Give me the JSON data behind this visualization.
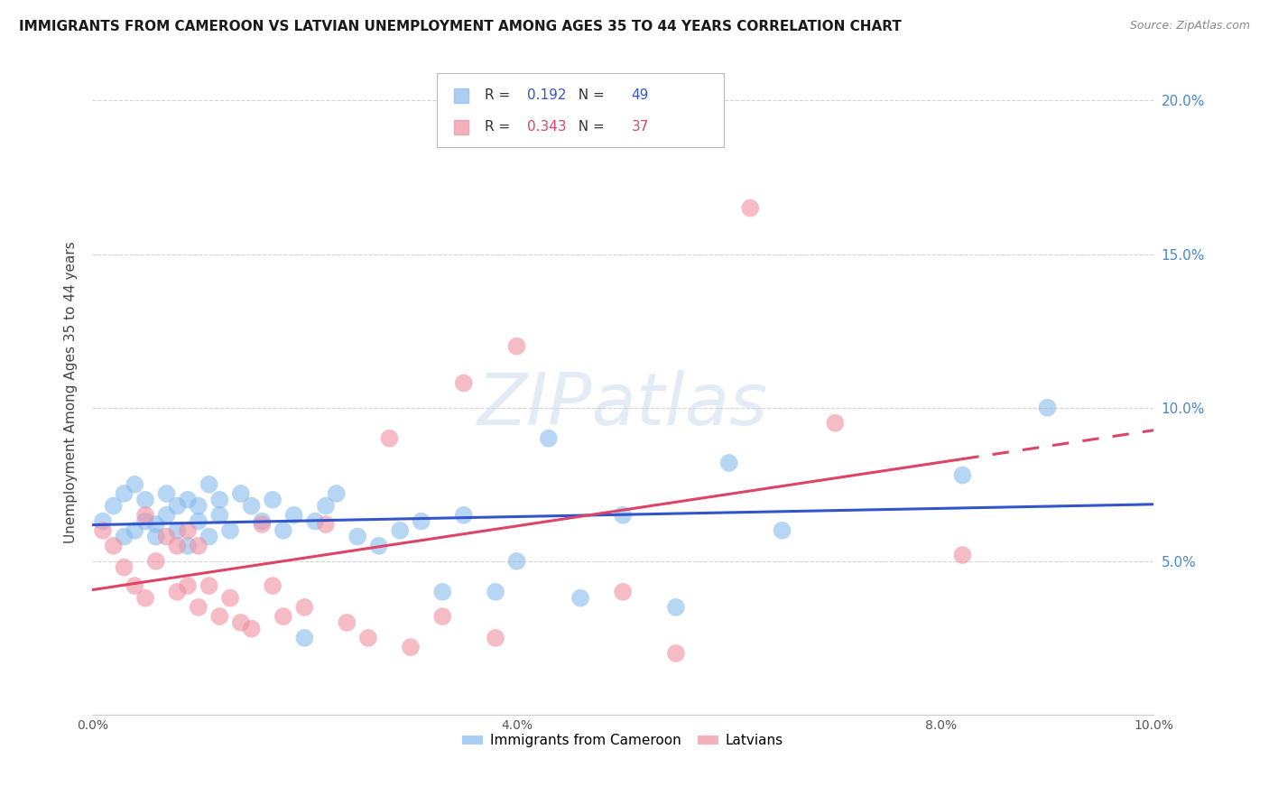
{
  "title": "IMMIGRANTS FROM CAMEROON VS LATVIAN UNEMPLOYMENT AMONG AGES 35 TO 44 YEARS CORRELATION CHART",
  "source": "Source: ZipAtlas.com",
  "ylabel": "Unemployment Among Ages 35 to 44 years",
  "xlim": [
    0.0,
    0.1
  ],
  "ylim": [
    0.0,
    0.21
  ],
  "xticks": [
    0.0,
    0.02,
    0.04,
    0.06,
    0.08,
    0.1
  ],
  "yticks": [
    0.0,
    0.05,
    0.1,
    0.15,
    0.2
  ],
  "xtick_labels": [
    "0.0%",
    "",
    "4.0%",
    "",
    "8.0%",
    "10.0%"
  ],
  "ytick_labels_right": [
    "",
    "5.0%",
    "10.0%",
    "15.0%",
    "20.0%"
  ],
  "background_color": "#ffffff",
  "grid_color": "#d0d0d0",
  "blue_color": "#88bbee",
  "pink_color": "#f090a0",
  "blue_line_color": "#3355cc",
  "pink_line_color": "#dd4466",
  "legend_r_blue": "0.192",
  "legend_n_blue": "49",
  "legend_r_pink": "0.343",
  "legend_n_pink": "37",
  "legend_label_blue": "Immigrants from Cameroon",
  "legend_label_pink": "Latvians",
  "blue_x": [
    0.001,
    0.002,
    0.003,
    0.003,
    0.004,
    0.004,
    0.005,
    0.005,
    0.006,
    0.006,
    0.007,
    0.007,
    0.008,
    0.008,
    0.009,
    0.009,
    0.01,
    0.01,
    0.011,
    0.011,
    0.012,
    0.012,
    0.013,
    0.014,
    0.015,
    0.016,
    0.017,
    0.018,
    0.019,
    0.02,
    0.021,
    0.022,
    0.023,
    0.025,
    0.027,
    0.029,
    0.031,
    0.033,
    0.035,
    0.038,
    0.04,
    0.043,
    0.046,
    0.05,
    0.055,
    0.06,
    0.065,
    0.082,
    0.09
  ],
  "blue_y": [
    0.063,
    0.068,
    0.058,
    0.072,
    0.06,
    0.075,
    0.063,
    0.07,
    0.062,
    0.058,
    0.072,
    0.065,
    0.068,
    0.06,
    0.055,
    0.07,
    0.063,
    0.068,
    0.075,
    0.058,
    0.07,
    0.065,
    0.06,
    0.072,
    0.068,
    0.063,
    0.07,
    0.06,
    0.065,
    0.025,
    0.063,
    0.068,
    0.072,
    0.058,
    0.055,
    0.06,
    0.063,
    0.04,
    0.065,
    0.04,
    0.05,
    0.09,
    0.038,
    0.065,
    0.035,
    0.082,
    0.06,
    0.078,
    0.1
  ],
  "pink_x": [
    0.001,
    0.002,
    0.003,
    0.004,
    0.005,
    0.005,
    0.006,
    0.007,
    0.008,
    0.008,
    0.009,
    0.009,
    0.01,
    0.01,
    0.011,
    0.012,
    0.013,
    0.014,
    0.015,
    0.016,
    0.017,
    0.018,
    0.02,
    0.022,
    0.024,
    0.026,
    0.028,
    0.03,
    0.033,
    0.035,
    0.038,
    0.04,
    0.05,
    0.055,
    0.062,
    0.07,
    0.082
  ],
  "pink_y": [
    0.06,
    0.055,
    0.048,
    0.042,
    0.038,
    0.065,
    0.05,
    0.058,
    0.04,
    0.055,
    0.042,
    0.06,
    0.055,
    0.035,
    0.042,
    0.032,
    0.038,
    0.03,
    0.028,
    0.062,
    0.042,
    0.032,
    0.035,
    0.062,
    0.03,
    0.025,
    0.09,
    0.022,
    0.032,
    0.108,
    0.025,
    0.12,
    0.04,
    0.02,
    0.165,
    0.095,
    0.052
  ]
}
